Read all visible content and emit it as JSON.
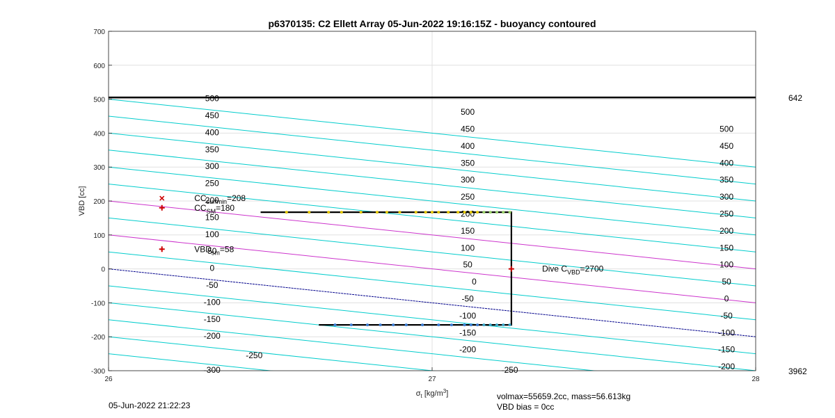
{
  "chart_data": {
    "type": "line",
    "title": "p6370135: C2 Ellett Array 05-Jun-2022 19:16:15Z - buoyancy contoured",
    "ylabel": "VBD [cc]",
    "xlabel_main": "σ",
    "xlabel_sub": "t",
    "xlabel_unit_pre": " [kg/m",
    "xlabel_unit_sup": "3",
    "xlabel_unit_post": "]",
    "xlim": [
      26,
      28
    ],
    "ylim": [
      -300,
      700
    ],
    "xticks": [
      26,
      27,
      28
    ],
    "yticks": [
      -300,
      -200,
      -100,
      0,
      100,
      200,
      300,
      400,
      500,
      600,
      700
    ],
    "grid": true,
    "right_axis_labels": [
      {
        "value": "642",
        "y": 505
      },
      {
        "value": "3962",
        "y": -300
      }
    ],
    "contour_slope_per_sigma": -100,
    "contour_origin_x": 26,
    "contours": [
      {
        "level": -300,
        "color": "#00cccc"
      },
      {
        "level": -250,
        "color": "#00cccc"
      },
      {
        "level": -200,
        "color": "#00cccc"
      },
      {
        "level": -150,
        "color": "#00cccc"
      },
      {
        "level": -100,
        "color": "#00cccc"
      },
      {
        "level": -50,
        "color": "#00cccc"
      },
      {
        "level": 0,
        "color": "#00008b"
      },
      {
        "level": 50,
        "color": "#00cccc"
      },
      {
        "level": 100,
        "color": "#cc33cc"
      },
      {
        "level": 150,
        "color": "#00cccc"
      },
      {
        "level": 200,
        "color": "#cc33cc"
      },
      {
        "level": 250,
        "color": "#00cccc"
      },
      {
        "level": 300,
        "color": "#00cccc"
      },
      {
        "level": 350,
        "color": "#00cccc"
      },
      {
        "level": 400,
        "color": "#00cccc"
      },
      {
        "level": 450,
        "color": "#00cccc"
      },
      {
        "level": 500,
        "color": "#00cccc"
      }
    ],
    "contour_labels": [
      {
        "text": "500",
        "x": 26.32,
        "y": 502
      },
      {
        "text": "450",
        "x": 26.32,
        "y": 452
      },
      {
        "text": "400",
        "x": 26.32,
        "y": 402
      },
      {
        "text": "350",
        "x": 26.32,
        "y": 352
      },
      {
        "text": "300",
        "x": 26.32,
        "y": 302
      },
      {
        "text": "250",
        "x": 26.32,
        "y": 252
      },
      {
        "text": "200",
        "x": 26.32,
        "y": 202
      },
      {
        "text": "150",
        "x": 26.32,
        "y": 152
      },
      {
        "text": "100",
        "x": 26.32,
        "y": 102
      },
      {
        "text": "50",
        "x": 26.32,
        "y": 52
      },
      {
        "text": "0",
        "x": 26.32,
        "y": 2
      },
      {
        "text": "-50",
        "x": 26.32,
        "y": -48
      },
      {
        "text": "-100",
        "x": 26.32,
        "y": -98
      },
      {
        "text": "-150",
        "x": 26.32,
        "y": -148
      },
      {
        "text": "-200",
        "x": 26.32,
        "y": -198
      },
      {
        "text": "-250",
        "x": 26.45,
        "y": -255
      },
      {
        "text": "-300",
        "x": 26.32,
        "y": -298
      },
      {
        "text": "500",
        "x": 27.11,
        "y": 462
      },
      {
        "text": "450",
        "x": 27.11,
        "y": 412
      },
      {
        "text": "400",
        "x": 27.11,
        "y": 362
      },
      {
        "text": "350",
        "x": 27.11,
        "y": 312
      },
      {
        "text": "300",
        "x": 27.11,
        "y": 262
      },
      {
        "text": "250",
        "x": 27.11,
        "y": 212
      },
      {
        "text": "200",
        "x": 27.11,
        "y": 162
      },
      {
        "text": "150",
        "x": 27.11,
        "y": 112
      },
      {
        "text": "100",
        "x": 27.11,
        "y": 62
      },
      {
        "text": "50",
        "x": 27.11,
        "y": 12
      },
      {
        "text": "0",
        "x": 27.13,
        "y": -38
      },
      {
        "text": "-50",
        "x": 27.11,
        "y": -88
      },
      {
        "text": "-100",
        "x": 27.11,
        "y": -138
      },
      {
        "text": "-150",
        "x": 27.11,
        "y": -188
      },
      {
        "text": "-200",
        "x": 27.11,
        "y": -238
      },
      {
        "text": "-250",
        "x": 27.24,
        "y": -298
      },
      {
        "text": "500",
        "x": 27.91,
        "y": 412
      },
      {
        "text": "450",
        "x": 27.91,
        "y": 362
      },
      {
        "text": "400",
        "x": 27.91,
        "y": 312
      },
      {
        "text": "350",
        "x": 27.91,
        "y": 262
      },
      {
        "text": "300",
        "x": 27.91,
        "y": 212
      },
      {
        "text": "250",
        "x": 27.91,
        "y": 162
      },
      {
        "text": "200",
        "x": 27.91,
        "y": 112
      },
      {
        "text": "150",
        "x": 27.91,
        "y": 62
      },
      {
        "text": "100",
        "x": 27.91,
        "y": 12
      },
      {
        "text": "50",
        "x": 27.91,
        "y": -38
      },
      {
        "text": "0",
        "x": 27.91,
        "y": -88
      },
      {
        "text": "-50",
        "x": 27.91,
        "y": -138
      },
      {
        "text": "-100",
        "x": 27.91,
        "y": -188
      },
      {
        "text": "-150",
        "x": 27.91,
        "y": -238
      },
      {
        "text": "-200",
        "x": 27.91,
        "y": -288
      }
    ],
    "depth_line": {
      "y": 505,
      "x": [
        26,
        28
      ]
    },
    "dive_profile": [
      {
        "x": 26.47,
        "y": 167
      },
      {
        "x": 27.245,
        "y": 167
      },
      {
        "x": 27.245,
        "y": -165
      },
      {
        "x": 26.65,
        "y": -165
      }
    ],
    "upper_points_x": [
      26.55,
      26.62,
      26.68,
      26.72,
      26.78,
      26.83,
      26.86,
      26.9,
      26.95,
      26.98,
      27.0,
      27.02,
      27.05,
      27.08,
      27.1,
      27.12,
      27.14,
      27.16,
      27.18,
      27.2,
      27.22,
      27.24
    ],
    "upper_points_y": 167,
    "lower_points_x": [
      26.7,
      26.75,
      26.8,
      26.84,
      26.88,
      26.92,
      26.97,
      27.02,
      27.06,
      27.1,
      27.12,
      27.14,
      27.16,
      27.18,
      27.2,
      27.22,
      27.24
    ],
    "lower_points_y": -165,
    "markers": [
      {
        "symbol": "x",
        "x": 26.165,
        "y": 208,
        "color": "#cc0000"
      },
      {
        "symbol": "+",
        "x": 26.165,
        "y": 180,
        "color": "#cc0000"
      },
      {
        "symbol": "+",
        "x": 26.165,
        "y": 58,
        "color": "#cc0000"
      },
      {
        "symbol": "+",
        "x": 27.245,
        "y": 0,
        "color": "#cc0000"
      }
    ],
    "annotations": [
      {
        "x": 26.265,
        "y": 208,
        "main": "CC",
        "sub": "surfmin",
        "tail": "=208"
      },
      {
        "x": 26.265,
        "y": 180,
        "main": "CC",
        "sub": "SM",
        "tail": "=180"
      },
      {
        "x": 26.265,
        "y": 58,
        "main": "VBD",
        "sub": "sm",
        "tail": "=58"
      },
      {
        "x": 27.34,
        "y": 0,
        "main": "Dive C",
        "sub": "VBD",
        "tail": "=2700"
      }
    ]
  },
  "footer": {
    "timestamp": "05-Jun-2022 21:22:23",
    "volmax": "volmax=55659.2cc, mass=56.613kg",
    "vbd_bias": "VBD bias = 0cc"
  },
  "colors": {
    "grid": "#e0e0e0",
    "axis": "#222222",
    "profile": "#000000",
    "upper_points": "#e6c800",
    "lower_points": "#3d7fd6"
  }
}
